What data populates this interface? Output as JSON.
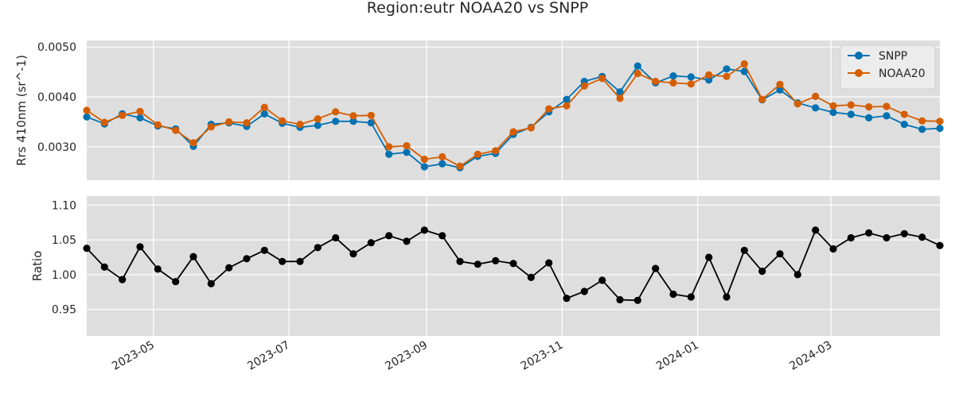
{
  "figure": {
    "title": "Region:eutr NOAA20 vs SNPP"
  },
  "colors": {
    "plot_background": "#dedede",
    "grid": "#ffffff",
    "snpp": "#0072b2",
    "noaa20": "#d55e00",
    "ratio": "#000000",
    "legend_bg": "#ececec"
  },
  "chart_data": [
    {
      "type": "line",
      "panel": "top",
      "x": [
        "2023-04-01",
        "2023-04-09",
        "2023-04-17",
        "2023-04-25",
        "2023-05-03",
        "2023-05-11",
        "2023-05-19",
        "2023-05-27",
        "2023-06-04",
        "2023-06-12",
        "2023-06-20",
        "2023-06-28",
        "2023-07-06",
        "2023-07-14",
        "2023-07-22",
        "2023-07-30",
        "2023-08-07",
        "2023-08-15",
        "2023-08-23",
        "2023-08-31",
        "2023-09-08",
        "2023-09-16",
        "2023-09-24",
        "2023-10-02",
        "2023-10-10",
        "2023-10-18",
        "2023-10-26",
        "2023-11-03",
        "2023-11-11",
        "2023-11-19",
        "2023-11-27",
        "2023-12-05",
        "2023-12-13",
        "2023-12-21",
        "2023-12-29",
        "2024-01-06",
        "2024-01-14",
        "2024-01-22",
        "2024-01-30",
        "2024-02-07",
        "2024-02-15",
        "2024-02-23",
        "2024-03-02",
        "2024-03-10",
        "2024-03-18",
        "2024-03-26",
        "2024-04-03",
        "2024-04-11",
        "2024-04-19"
      ],
      "series": [
        {
          "name": "SNPP",
          "color": "#0072b2",
          "values": [
            0.0036,
            0.00346,
            0.00366,
            0.00358,
            0.00342,
            0.00336,
            0.00301,
            0.00345,
            0.00348,
            0.00341,
            0.00366,
            0.00347,
            0.00339,
            0.00343,
            0.00351,
            0.00351,
            0.00348,
            0.00285,
            0.00289,
            0.0026,
            0.00266,
            0.00258,
            0.00281,
            0.00287,
            0.00325,
            0.00339,
            0.0037,
            0.00395,
            0.00431,
            0.00441,
            0.0041,
            0.00462,
            0.00428,
            0.00442,
            0.0044,
            0.00434,
            0.00456,
            0.00451,
            0.00394,
            0.00414,
            0.00388,
            0.00378,
            0.00369,
            0.00365,
            0.00358,
            0.00362,
            0.00345,
            0.00335,
            0.00337
          ]
        },
        {
          "name": "NOAA20",
          "color": "#d55e00",
          "values": [
            0.00373,
            0.00349,
            0.00363,
            0.00371,
            0.00344,
            0.00333,
            0.00308,
            0.0034,
            0.0035,
            0.00348,
            0.00379,
            0.00352,
            0.00345,
            0.00356,
            0.0037,
            0.00362,
            0.00363,
            0.003,
            0.00302,
            0.00275,
            0.0028,
            0.00261,
            0.00285,
            0.00292,
            0.0033,
            0.00338,
            0.00376,
            0.00382,
            0.00422,
            0.00437,
            0.00397,
            0.00447,
            0.00431,
            0.00428,
            0.00426,
            0.00444,
            0.00441,
            0.00466,
            0.00395,
            0.00425,
            0.00386,
            0.00401,
            0.00382,
            0.00384,
            0.0038,
            0.00381,
            0.00365,
            0.00352,
            0.00351
          ]
        }
      ],
      "ylabel": "Rrs 410nm (sr^-1)",
      "ylim": [
        0.00233,
        0.00513
      ],
      "yticks": [
        0.003,
        0.004,
        0.005
      ],
      "ytick_labels": [
        "0.0030",
        "0.0040",
        "0.0050"
      ],
      "grid": true,
      "legend": {
        "placement": "top-right",
        "entries": [
          "SNPP",
          "NOAA20"
        ]
      }
    },
    {
      "type": "line",
      "panel": "bottom",
      "x": [
        "2023-04-01",
        "2023-04-09",
        "2023-04-17",
        "2023-04-25",
        "2023-05-03",
        "2023-05-11",
        "2023-05-19",
        "2023-05-27",
        "2023-06-04",
        "2023-06-12",
        "2023-06-20",
        "2023-06-28",
        "2023-07-06",
        "2023-07-14",
        "2023-07-22",
        "2023-07-30",
        "2023-08-07",
        "2023-08-15",
        "2023-08-23",
        "2023-08-31",
        "2023-09-08",
        "2023-09-16",
        "2023-09-24",
        "2023-10-02",
        "2023-10-10",
        "2023-10-18",
        "2023-10-26",
        "2023-11-03",
        "2023-11-11",
        "2023-11-19",
        "2023-11-27",
        "2023-12-05",
        "2023-12-13",
        "2023-12-21",
        "2023-12-29",
        "2024-01-06",
        "2024-01-14",
        "2024-01-22",
        "2024-01-30",
        "2024-02-07",
        "2024-02-15",
        "2024-02-23",
        "2024-03-02",
        "2024-03-10",
        "2024-03-18",
        "2024-03-26",
        "2024-04-03",
        "2024-04-11",
        "2024-04-19"
      ],
      "series": [
        {
          "color": "#000000",
          "values": [
            1.038,
            1.011,
            0.993,
            1.04,
            1.008,
            0.99,
            1.026,
            0.987,
            1.01,
            1.023,
            1.035,
            1.019,
            1.019,
            1.039,
            1.053,
            1.03,
            1.046,
            1.056,
            1.048,
            1.064,
            1.056,
            1.019,
            1.015,
            1.02,
            1.016,
            0.996,
            1.017,
            0.966,
            0.976,
            0.992,
            0.964,
            0.963,
            1.009,
            0.972,
            0.968,
            1.025,
            0.968,
            1.035,
            1.005,
            1.03,
            1.0,
            1.064,
            1.037,
            1.053,
            1.06,
            1.053,
            1.059,
            1.054,
            1.042
          ]
        }
      ],
      "ylabel": "Ratio",
      "ylim": [
        0.912,
        1.113
      ],
      "yticks": [
        0.95,
        1.0,
        1.05,
        1.1
      ],
      "ytick_labels": [
        "0.95",
        "1.00",
        "1.05",
        "1.10"
      ],
      "xticks": [
        "2023-05-01",
        "2023-07-01",
        "2023-09-01",
        "2023-11-01",
        "2024-01-01",
        "2024-03-01"
      ],
      "xtick_labels": [
        "2023-05",
        "2023-07",
        "2023-09",
        "2023-11",
        "2024-01",
        "2024-03"
      ],
      "grid": true
    }
  ]
}
